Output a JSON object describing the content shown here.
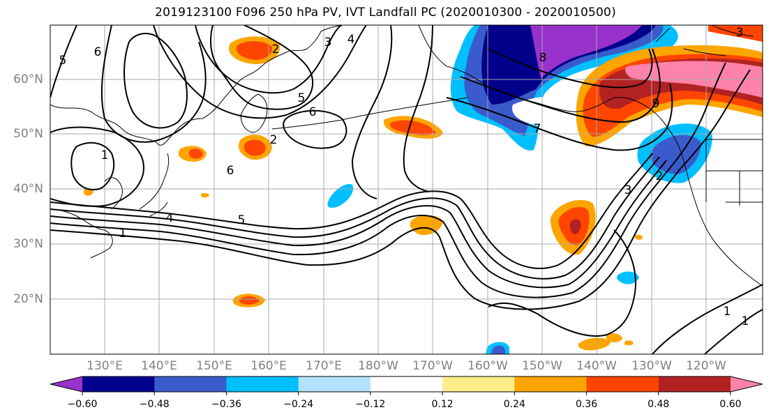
{
  "title": "2019123100 F096 250 hPa PV, IVT Landfall PC (2020010300 - 2020010500)",
  "map": {
    "lat_labels": [
      "60°N",
      "50°N",
      "40°N",
      "30°N",
      "20°N"
    ],
    "lon_labels": [
      "130°E",
      "140°E",
      "150°E",
      "160°E",
      "170°E",
      "180°W",
      "170°W",
      "160°W",
      "150°W",
      "140°W",
      "130°W",
      "120°W"
    ],
    "pv_contour_labels": [
      "1",
      "1",
      "2",
      "2",
      "3",
      "3",
      "4",
      "4",
      "5",
      "5",
      "5",
      "6",
      "6",
      "6",
      "7",
      "8",
      "9",
      "1",
      "1",
      "2",
      "3"
    ]
  },
  "colorbar": {
    "tick_labels": [
      "−0.60",
      "−0.48",
      "−0.36",
      "−0.24",
      "−0.12",
      "0.12",
      "0.24",
      "0.36",
      "0.48",
      "0.60"
    ],
    "colors": [
      "#9932CC",
      "#00008B",
      "#3A5BCB",
      "#00BFFF",
      "#B2E2FF",
      "#FFFFFF",
      "#FFEC8B",
      "#FFA500",
      "#FF4500",
      "#B22222",
      "#FF82AB"
    ]
  }
}
